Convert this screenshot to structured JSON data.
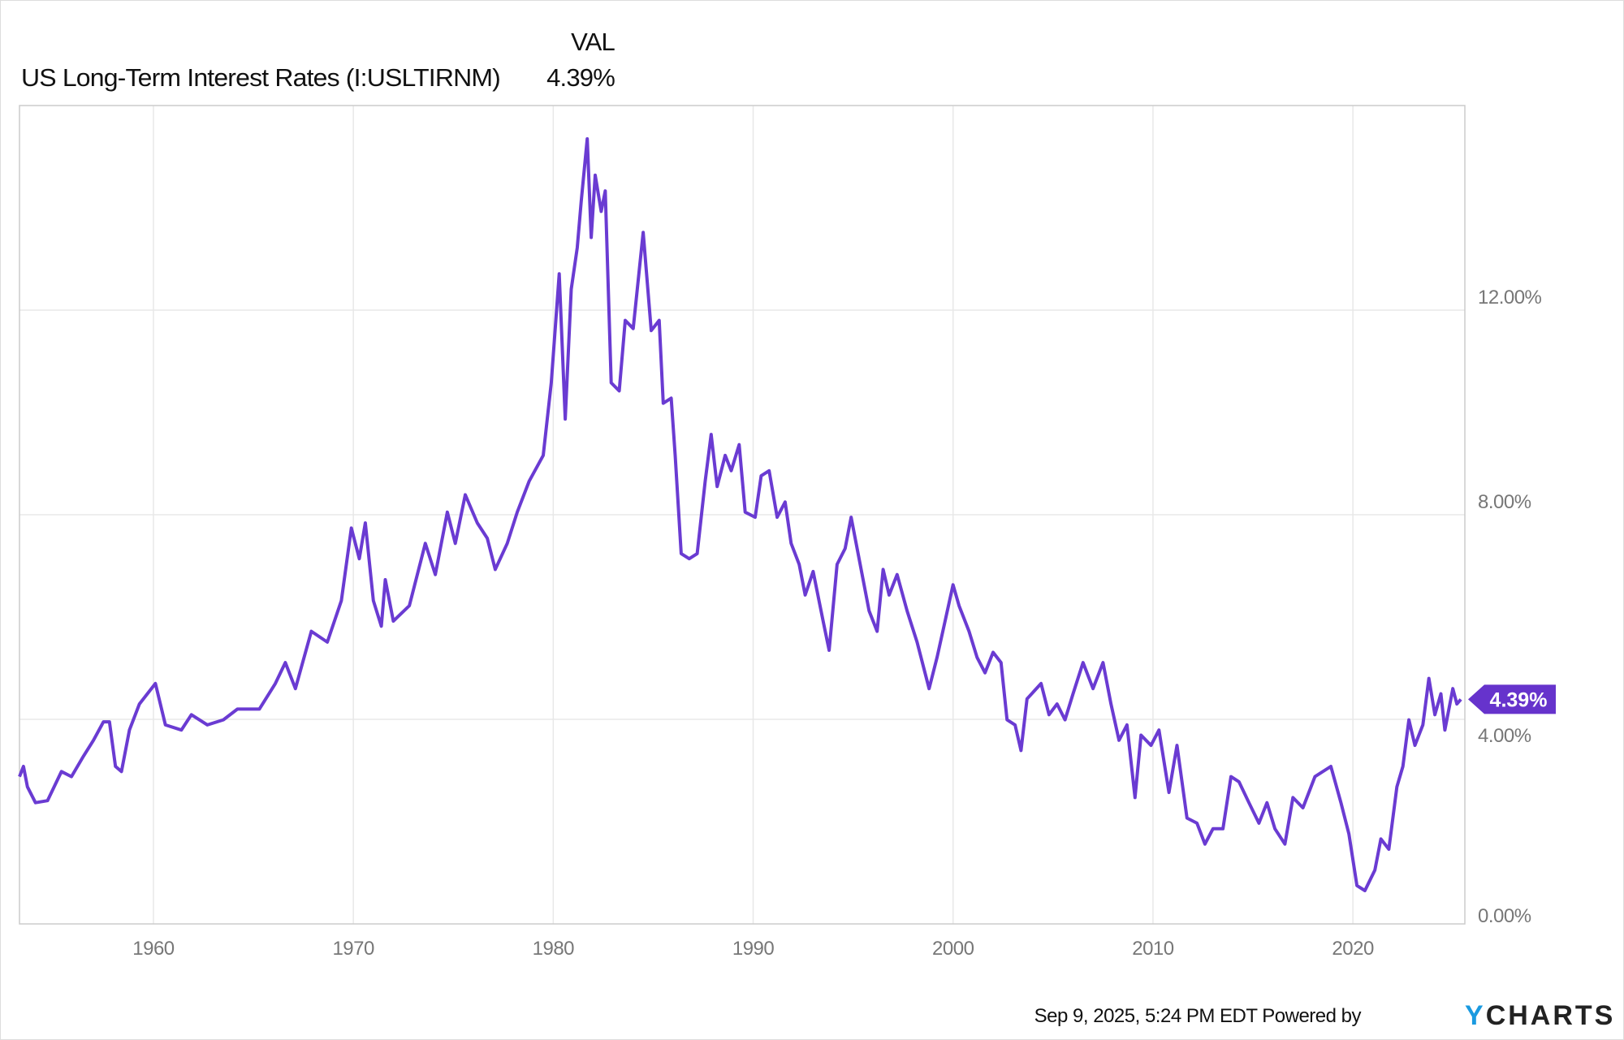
{
  "legend": {
    "column_header": "VAL",
    "series_name": "US Long-Term Interest Rates (I:USLTIRNM)",
    "series_value": "4.39%"
  },
  "footer": {
    "timestamp": "Sep 9, 2025, 5:24 PM EDT",
    "powered_by": "Powered by",
    "logo_y": "Y",
    "logo_rest": "CHARTS"
  },
  "colors": {
    "line": "#6a3bd2",
    "tag": "#6633cc",
    "logo_y": "#1a9ae0",
    "grid": "#e8e8e8"
  },
  "chart_data": {
    "type": "line",
    "title": "",
    "xlabel": "",
    "ylabel": "",
    "xlim": [
      1953.3,
      2025.6
    ],
    "ylim": [
      0,
      16
    ],
    "grid": true,
    "x_ticks": [
      1960,
      1970,
      1980,
      1990,
      2000,
      2010,
      2020
    ],
    "x_tick_labels": [
      "1960",
      "1970",
      "1980",
      "1990",
      "2000",
      "2010",
      "2020"
    ],
    "y_ticks": [
      0,
      4,
      8,
      12
    ],
    "y_tick_labels": [
      "0.00%",
      "4.00%",
      "8.00%",
      "12.00%"
    ],
    "y_axis_side": "right",
    "last_value_label": "4.39%",
    "last_value": 4.39,
    "series": [
      {
        "name": "US Long-Term Interest Rates (I:USLTIRNM)",
        "x": [
          1953.3,
          1953.5,
          1953.7,
          1954.1,
          1954.7,
          1955.4,
          1955.9,
          1956.5,
          1957.0,
          1957.5,
          1957.8,
          1958.1,
          1958.4,
          1958.8,
          1959.3,
          1960.1,
          1960.6,
          1961.4,
          1961.9,
          1962.7,
          1963.5,
          1964.2,
          1965.3,
          1966.1,
          1966.6,
          1967.1,
          1967.9,
          1968.7,
          1969.4,
          1969.9,
          1970.3,
          1970.6,
          1971.0,
          1971.4,
          1971.6,
          1972.0,
          1972.8,
          1973.6,
          1974.1,
          1974.7,
          1975.1,
          1975.6,
          1976.2,
          1976.7,
          1977.1,
          1977.7,
          1978.2,
          1978.8,
          1979.5,
          1979.9,
          1980.3,
          1980.6,
          1980.9,
          1981.2,
          1981.4,
          1981.7,
          1981.9,
          1982.1,
          1982.4,
          1982.6,
          1982.9,
          1983.3,
          1983.6,
          1984.0,
          1984.5,
          1984.9,
          1985.3,
          1985.5,
          1985.9,
          1986.1,
          1986.4,
          1986.8,
          1987.2,
          1987.6,
          1987.9,
          1988.2,
          1988.6,
          1988.9,
          1989.3,
          1989.6,
          1990.1,
          1990.4,
          1990.8,
          1991.2,
          1991.6,
          1991.9,
          1992.3,
          1992.6,
          1993.0,
          1993.5,
          1993.8,
          1994.2,
          1994.6,
          1994.9,
          1995.3,
          1995.8,
          1996.2,
          1996.5,
          1996.8,
          1997.2,
          1997.7,
          1998.2,
          1998.8,
          1999.2,
          1999.6,
          2000.0,
          2000.3,
          2000.8,
          2001.2,
          2001.6,
          2002.0,
          2002.4,
          2002.7,
          2003.1,
          2003.4,
          2003.7,
          2004.4,
          2004.8,
          2005.2,
          2005.6,
          2006.0,
          2006.5,
          2007.0,
          2007.5,
          2007.9,
          2008.3,
          2008.7,
          2009.1,
          2009.4,
          2009.9,
          2010.3,
          2010.8,
          2011.2,
          2011.7,
          2012.2,
          2012.6,
          2013.0,
          2013.5,
          2013.9,
          2014.3,
          2014.8,
          2015.3,
          2015.7,
          2016.1,
          2016.6,
          2017.0,
          2017.5,
          2018.1,
          2018.9,
          2019.4,
          2019.8,
          2020.2,
          2020.6,
          2021.1,
          2021.4,
          2021.8,
          2022.2,
          2022.5,
          2022.8,
          2023.1,
          2023.5,
          2023.8,
          2024.1,
          2024.4,
          2024.6,
          2025.0,
          2025.2,
          2025.4
        ],
        "values": [
          2.88,
          3.08,
          2.68,
          2.37,
          2.41,
          2.98,
          2.88,
          3.28,
          3.59,
          3.95,
          3.95,
          3.08,
          2.98,
          3.79,
          4.3,
          4.7,
          3.89,
          3.79,
          4.09,
          3.89,
          3.99,
          4.2,
          4.2,
          4.7,
          5.11,
          4.6,
          5.72,
          5.51,
          6.32,
          7.74,
          7.14,
          7.84,
          6.32,
          5.82,
          6.73,
          5.92,
          6.22,
          7.44,
          6.83,
          8.05,
          7.44,
          8.39,
          7.84,
          7.54,
          6.93,
          7.44,
          8.05,
          8.66,
          9.16,
          10.58,
          12.71,
          9.87,
          12.41,
          13.22,
          14.13,
          15.35,
          13.42,
          14.64,
          13.93,
          14.33,
          10.58,
          10.42,
          11.8,
          11.64,
          13.52,
          11.6,
          11.8,
          10.18,
          10.28,
          9.16,
          7.24,
          7.14,
          7.24,
          8.66,
          9.57,
          8.55,
          9.16,
          8.86,
          9.37,
          8.05,
          7.95,
          8.76,
          8.86,
          7.95,
          8.25,
          7.44,
          7.03,
          6.43,
          6.89,
          5.92,
          5.35,
          7.03,
          7.34,
          7.95,
          7.14,
          6.12,
          5.72,
          6.93,
          6.43,
          6.83,
          6.12,
          5.51,
          4.6,
          5.21,
          5.92,
          6.63,
          6.22,
          5.72,
          5.21,
          4.91,
          5.31,
          5.11,
          3.99,
          3.89,
          3.39,
          4.4,
          4.7,
          4.09,
          4.3,
          3.99,
          4.5,
          5.11,
          4.6,
          5.11,
          4.3,
          3.59,
          3.89,
          2.47,
          3.69,
          3.49,
          3.79,
          2.57,
          3.49,
          2.07,
          1.97,
          1.56,
          1.86,
          1.86,
          2.88,
          2.78,
          2.37,
          1.97,
          2.37,
          1.86,
          1.56,
          2.47,
          2.27,
          2.88,
          3.08,
          2.37,
          1.76,
          0.75,
          0.65,
          1.05,
          1.66,
          1.46,
          2.68,
          3.08,
          3.99,
          3.49,
          3.89,
          4.8,
          4.09,
          4.5,
          3.79,
          4.6,
          4.3,
          4.39
        ]
      }
    ]
  }
}
